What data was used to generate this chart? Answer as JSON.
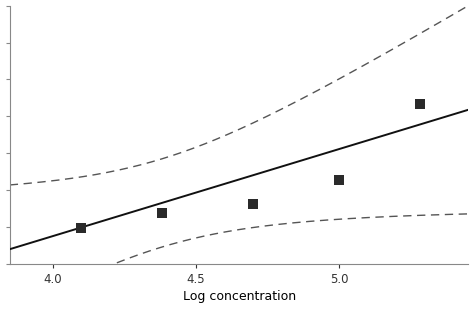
{
  "title": "",
  "xlabel": "Log concentration",
  "ylabel": "",
  "xlim": [
    3.85,
    5.45
  ],
  "ylim": [
    4.2,
    8.8
  ],
  "scatter_x": [
    4.1,
    4.38,
    4.7,
    5.0,
    5.28
  ],
  "scatter_y": [
    4.85,
    5.12,
    5.28,
    5.7,
    7.05
  ],
  "reg_slope": 1.55,
  "reg_intercept": -1.5,
  "x_mean": 4.38,
  "se_base": 0.28,
  "ci_factor": 2.8,
  "ci_curv": 0.25,
  "marker_color": "#2a2a2a",
  "line_color": "#111111",
  "ci_color": "#555555",
  "background_color": "#ffffff",
  "xticks": [
    4.0,
    4.5,
    5.0
  ],
  "marker_size": 7,
  "spine_color": "#888888",
  "ytick_count": 8
}
